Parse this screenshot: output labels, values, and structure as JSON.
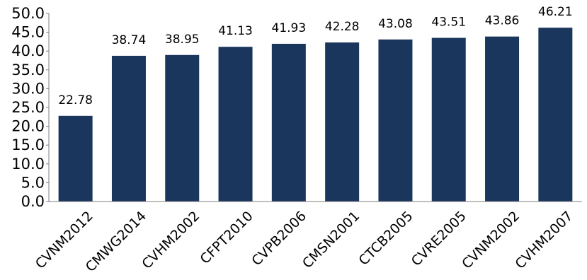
{
  "chart_data": {
    "type": "bar",
    "title": "",
    "xlabel": "",
    "ylabel": "",
    "ylim": [
      0,
      50
    ],
    "yticks": [
      "0.0",
      "5.0",
      "10.0",
      "15.0",
      "20.0",
      "25.0",
      "30.0",
      "35.0",
      "40.0",
      "45.0",
      "50.0"
    ],
    "grid": false,
    "legend": "none",
    "bar_color": "#1b365d",
    "categories": [
      "CVNM2012",
      "CMWG2014",
      "CVHM2002",
      "CFPT2010",
      "CVPB2006",
      "CMSN2001",
      "CTCB2005",
      "CVRE2005",
      "CVNM2002",
      "CVHM2007"
    ],
    "values": [
      22.78,
      38.74,
      38.95,
      41.13,
      41.93,
      42.28,
      43.08,
      43.51,
      43.86,
      46.21
    ],
    "value_labels": [
      "22.78",
      "38.74",
      "38.95",
      "41.13",
      "41.93",
      "42.28",
      "43.08",
      "43.51",
      "43.86",
      "46.21"
    ]
  }
}
